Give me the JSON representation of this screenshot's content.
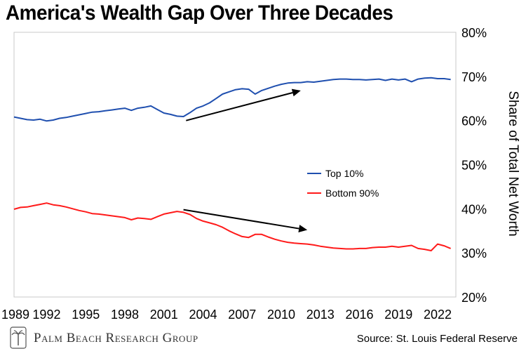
{
  "title": "America's Wealth Gap Over Three Decades",
  "source": "Source: St. Louis Federal Reserve",
  "brand": "Palm Beach Research Group",
  "chart_data": {
    "type": "line",
    "title": "America's Wealth Gap Over Three Decades",
    "xlabel": "",
    "ylabel": "Share of Total Net Worth",
    "x_ticks": [
      "1989",
      "1992",
      "1995",
      "1998",
      "2001",
      "2004",
      "2007",
      "2010",
      "2013",
      "2016",
      "2019",
      "2022"
    ],
    "y_ticks": [
      "80%",
      "70%",
      "60%",
      "50%",
      "40%",
      "30%",
      "20%"
    ],
    "xlim": [
      1989.5,
      2023.4
    ],
    "ylim": [
      20,
      80
    ],
    "grid": false,
    "legend_position": "center-right",
    "series": [
      {
        "name": "Top 10%",
        "color": "#1f4faf",
        "x": [
          1989.5,
          1990.0,
          1990.5,
          1991.0,
          1991.5,
          1992.0,
          1992.5,
          1993.0,
          1993.5,
          1994.0,
          1994.5,
          1995.0,
          1995.5,
          1996.0,
          1996.5,
          1997.0,
          1997.5,
          1998.0,
          1998.5,
          1999.0,
          1999.5,
          2000.0,
          2000.5,
          2001.0,
          2001.5,
          2002.0,
          2002.5,
          2003.0,
          2003.5,
          2004.0,
          2004.5,
          2005.0,
          2005.5,
          2006.0,
          2006.5,
          2007.0,
          2007.5,
          2008.0,
          2008.5,
          2009.0,
          2009.5,
          2010.0,
          2010.5,
          2011.0,
          2011.5,
          2012.0,
          2012.5,
          2013.0,
          2013.5,
          2014.0,
          2014.5,
          2015.0,
          2015.5,
          2016.0,
          2016.5,
          2017.0,
          2017.5,
          2018.0,
          2018.5,
          2019.0,
          2019.5,
          2020.0,
          2020.5,
          2021.0,
          2021.5,
          2022.0,
          2022.5,
          2023.0
        ],
        "values": [
          60.8,
          60.5,
          60.2,
          60.1,
          60.3,
          59.9,
          60.1,
          60.5,
          60.7,
          61.0,
          61.3,
          61.6,
          61.9,
          62.0,
          62.2,
          62.4,
          62.6,
          62.8,
          62.3,
          62.8,
          63.0,
          63.3,
          62.5,
          61.7,
          61.4,
          61.0,
          60.9,
          61.8,
          62.8,
          63.3,
          64.0,
          65.0,
          66.0,
          66.5,
          67.0,
          67.2,
          67.1,
          66.0,
          66.8,
          67.3,
          67.8,
          68.2,
          68.5,
          68.6,
          68.6,
          68.8,
          68.7,
          68.9,
          69.1,
          69.3,
          69.4,
          69.4,
          69.3,
          69.3,
          69.2,
          69.3,
          69.4,
          69.1,
          69.4,
          69.2,
          69.4,
          68.8,
          69.4,
          69.6,
          69.7,
          69.5,
          69.5,
          69.3
        ]
      },
      {
        "name": "Bottom 90%",
        "color": "#ff1a1a",
        "x": [
          1989.5,
          1990.0,
          1990.5,
          1991.0,
          1991.5,
          1992.0,
          1992.5,
          1993.0,
          1993.5,
          1994.0,
          1994.5,
          1995.0,
          1995.5,
          1996.0,
          1996.5,
          1997.0,
          1997.5,
          1998.0,
          1998.5,
          1999.0,
          1999.5,
          2000.0,
          2000.5,
          2001.0,
          2001.5,
          2002.0,
          2002.5,
          2003.0,
          2003.5,
          2004.0,
          2004.5,
          2005.0,
          2005.5,
          2006.0,
          2006.5,
          2007.0,
          2007.5,
          2008.0,
          2008.5,
          2009.0,
          2009.5,
          2010.0,
          2010.5,
          2011.0,
          2011.5,
          2012.0,
          2012.5,
          2013.0,
          2013.5,
          2014.0,
          2014.5,
          2015.0,
          2015.5,
          2016.0,
          2016.5,
          2017.0,
          2017.5,
          2018.0,
          2018.5,
          2019.0,
          2019.5,
          2020.0,
          2020.5,
          2021.0,
          2021.5,
          2022.0,
          2022.5,
          2023.0
        ],
        "values": [
          39.9,
          40.3,
          40.4,
          40.7,
          41.0,
          41.3,
          40.9,
          40.7,
          40.4,
          40.0,
          39.6,
          39.3,
          38.9,
          38.8,
          38.6,
          38.4,
          38.2,
          38.0,
          37.5,
          37.9,
          37.8,
          37.6,
          38.2,
          38.8,
          39.1,
          39.4,
          39.2,
          38.7,
          37.8,
          37.2,
          36.8,
          36.4,
          35.8,
          35.0,
          34.3,
          33.7,
          33.5,
          34.2,
          34.2,
          33.6,
          33.1,
          32.7,
          32.4,
          32.2,
          32.1,
          32.0,
          31.8,
          31.5,
          31.3,
          31.1,
          31.0,
          30.9,
          30.9,
          31.0,
          31.0,
          31.2,
          31.3,
          31.3,
          31.5,
          31.3,
          31.5,
          31.7,
          31.0,
          30.8,
          30.5,
          32.0,
          31.6,
          31.0
        ]
      }
    ],
    "annotations": [
      {
        "type": "arrow",
        "from": [
          2002.7,
          60.0
        ],
        "to": [
          2011.5,
          66.8
        ]
      },
      {
        "type": "arrow",
        "from": [
          2002.5,
          39.8
        ],
        "to": [
          2012.0,
          35.2
        ]
      }
    ]
  }
}
